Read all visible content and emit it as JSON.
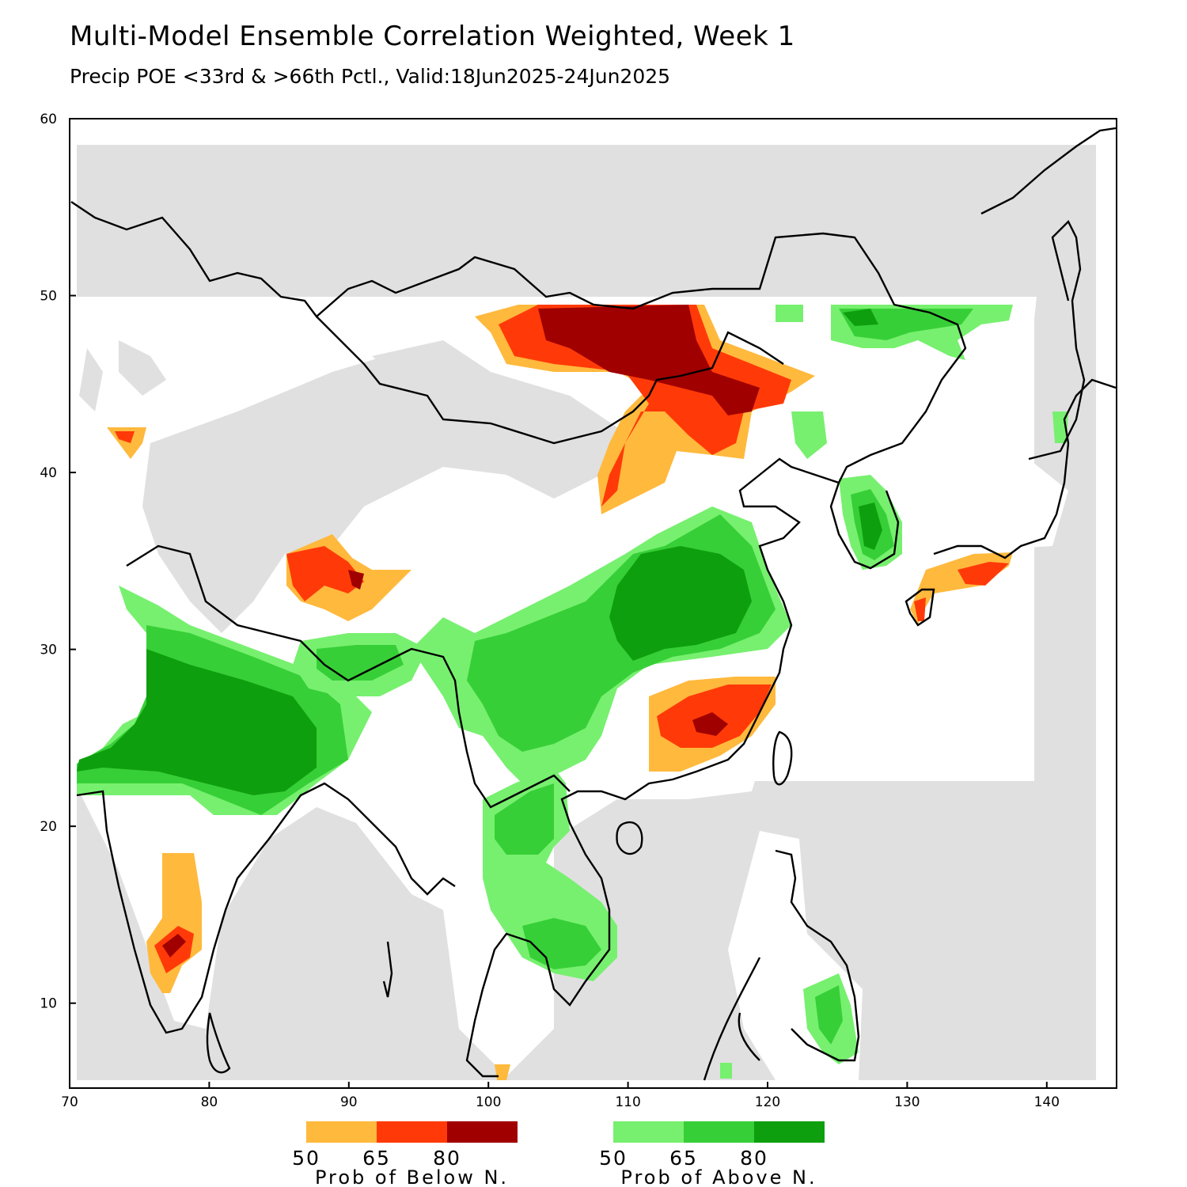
{
  "title": "Multi-Model Ensemble Correlation Weighted, Week 1",
  "subtitle": "Precip POE <33rd & >66th Pctl., Valid:18Jun2025-24Jun2025",
  "axes": {
    "x_ticks": [
      "70",
      "80",
      "90",
      "100",
      "110",
      "120",
      "130",
      "140"
    ],
    "y_ticks": [
      "10",
      "20",
      "30",
      "40",
      "50",
      "60"
    ]
  },
  "legend": {
    "below": {
      "title": "Prob of Below N.",
      "labels": [
        "50",
        "65",
        "80"
      ],
      "colors": [
        "#FFB93D",
        "#FF3A08",
        "#A00000"
      ]
    },
    "above": {
      "title": "Prob of Above N.",
      "labels": [
        "50",
        "65",
        "80"
      ],
      "colors": [
        "#77F06F",
        "#37CF37",
        "#0E9F0E"
      ]
    }
  },
  "colors": {
    "no_data_gray": "#E0E0E0",
    "coastline": "#000000"
  }
}
